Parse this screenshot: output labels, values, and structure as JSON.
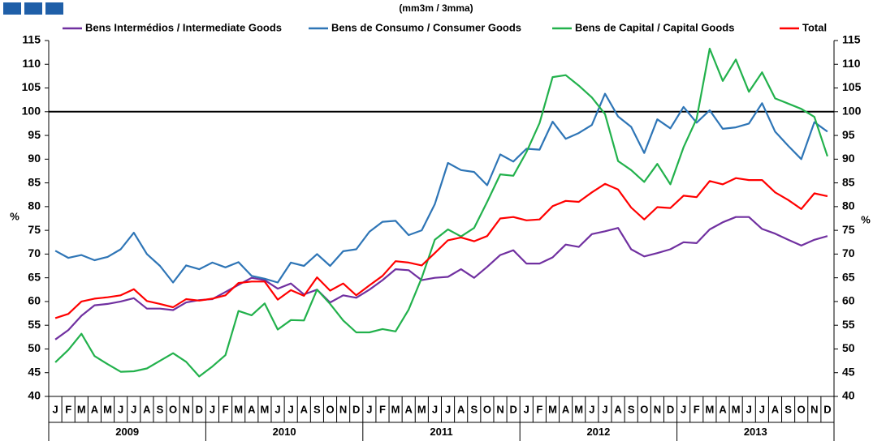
{
  "chart_data": {
    "type": "line",
    "title": "(mm3m / 3mma)",
    "y_label": "%",
    "y2_label": "%",
    "categories": [
      "J",
      "F",
      "M",
      "A",
      "M",
      "J",
      "J",
      "A",
      "S",
      "O",
      "N",
      "D",
      "J",
      "F",
      "M",
      "A",
      "M",
      "J",
      "J",
      "A",
      "S",
      "O",
      "N",
      "D",
      "J",
      "F",
      "M",
      "A",
      "M",
      "J",
      "J",
      "A",
      "S",
      "O",
      "N",
      "D",
      "J",
      "F",
      "M",
      "A",
      "M",
      "J",
      "J",
      "A",
      "S",
      "O",
      "N",
      "D",
      "J",
      "F",
      "M",
      "A",
      "M",
      "J",
      "J",
      "A",
      "S",
      "O",
      "N",
      "D"
    ],
    "years": [
      "2009",
      "2010",
      "2011",
      "2012",
      "2013"
    ],
    "ylim": [
      40,
      115
    ],
    "yticks": [
      40,
      45,
      50,
      55,
      60,
      65,
      70,
      75,
      80,
      85,
      90,
      95,
      100,
      105,
      110,
      115
    ],
    "y2lim": [
      40,
      115
    ],
    "y2ticks": [
      40,
      45,
      50,
      55,
      60,
      65,
      70,
      75,
      80,
      85,
      90,
      95,
      100,
      105,
      110,
      115
    ],
    "reference_line": 100,
    "legend": "top",
    "series": [
      {
        "name": "Bens Intermédios / Intermediate Goods",
        "color": "#7030a0",
        "values": [
          52,
          54,
          57,
          59.2,
          59.5,
          60,
          60.7,
          58.5,
          58.5,
          58.2,
          59.8,
          60.3,
          60.5,
          62,
          63.5,
          65,
          64.5,
          62.7,
          63.8,
          61.5,
          62.5,
          59.8,
          61.3,
          60.8,
          62.5,
          64.5,
          66.8,
          66.6,
          64.5,
          65,
          65.2,
          66.8,
          65,
          67.3,
          69.8,
          70.8,
          68,
          68,
          69.3,
          72,
          71.5,
          74.2,
          74.8,
          75.5,
          71,
          69.5,
          70.2,
          71,
          72.5,
          72.3,
          75.2,
          76.7,
          77.8,
          77.8,
          75.3,
          74.3,
          73,
          71.8,
          73,
          73.8
        ]
      },
      {
        "name": "Bens de Consumo / Consumer Goods",
        "color": "#2e75b6",
        "values": [
          70.7,
          69.2,
          69.8,
          68.7,
          69.4,
          71,
          74.5,
          70,
          67.5,
          64,
          67.6,
          66.8,
          68.2,
          67.2,
          68.3,
          65.4,
          64.8,
          64,
          68.2,
          67.5,
          70,
          67.5,
          70.6,
          71,
          74.7,
          76.8,
          77,
          74,
          75,
          80.5,
          89.2,
          87.7,
          87.3,
          84.5,
          91,
          89.5,
          92.2,
          92,
          97.9,
          94.3,
          95.5,
          97.2,
          103.8,
          99,
          96.8,
          91.3,
          98.4,
          96.5,
          101,
          97.7,
          100.3,
          96.4,
          96.7,
          97.5,
          101.8,
          95.8,
          92.8,
          90,
          97.8,
          95.8
        ]
      },
      {
        "name": "Bens de Capital / Capital Goods",
        "color": "#22b14c",
        "values": [
          47.2,
          49.8,
          53.2,
          48.5,
          46.8,
          45.2,
          45.3,
          45.9,
          47.5,
          49.1,
          47.3,
          44.2,
          46.3,
          48.7,
          58,
          57.1,
          59.6,
          54.1,
          56.1,
          56,
          62.5,
          59.5,
          56,
          53.5,
          53.5,
          54.2,
          53.7,
          58.3,
          65,
          73,
          75.2,
          73.7,
          75.5,
          81,
          86.8,
          86.5,
          91.5,
          97.6,
          107.3,
          107.7,
          105.5,
          103,
          99.5,
          89.6,
          87.7,
          85.2,
          89,
          84.7,
          92.5,
          98.5,
          113.3,
          106.5,
          111,
          104.2,
          108.3,
          102.8,
          101.7,
          100.6,
          98.9,
          90.6
        ]
      },
      {
        "name": "Total",
        "color": "#ff0000",
        "values": [
          56.5,
          57.4,
          60,
          60.6,
          60.9,
          61.3,
          62.6,
          60.1,
          59.5,
          58.8,
          60.5,
          60.2,
          60.6,
          61.3,
          63.9,
          64.2,
          64.2,
          60.4,
          62.4,
          61.2,
          65.1,
          62.3,
          63.8,
          61.3,
          63.4,
          65.4,
          68.5,
          68.2,
          67.6,
          70.2,
          72.9,
          73.5,
          72.7,
          73.8,
          77.5,
          77.8,
          77.1,
          77.3,
          80.1,
          81.2,
          81,
          83,
          84.8,
          83.6,
          79.8,
          77.3,
          79.9,
          79.7,
          82.3,
          82,
          85.4,
          84.7,
          86,
          85.6,
          85.6,
          83,
          81.4,
          79.5,
          82.8,
          82.2
        ]
      }
    ]
  }
}
